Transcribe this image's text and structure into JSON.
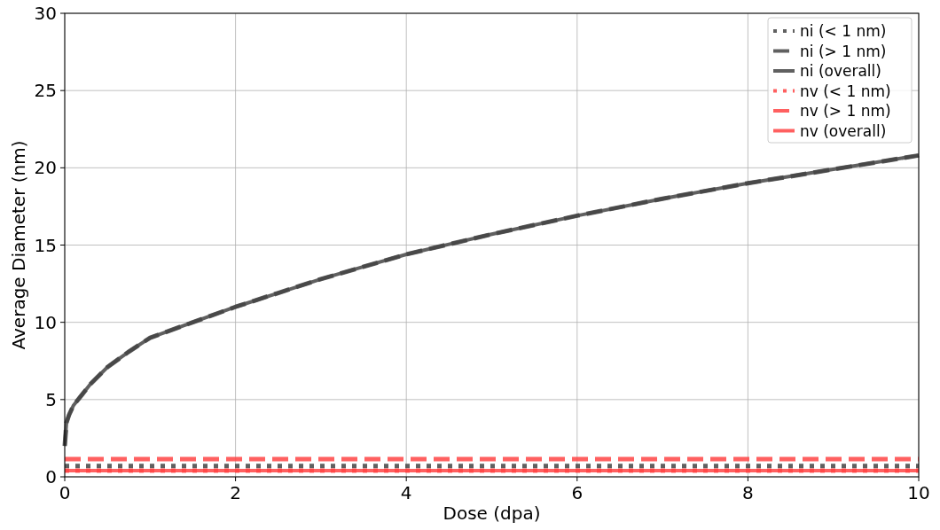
{
  "chart_data": {
    "type": "line",
    "xlabel": "Dose (dpa)",
    "ylabel": "Average Diameter (nm)",
    "xlim": [
      0,
      10
    ],
    "ylim": [
      0,
      30
    ],
    "xticks": [
      0,
      2,
      4,
      6,
      8,
      10
    ],
    "yticks": [
      0,
      5,
      10,
      15,
      20,
      25,
      30
    ],
    "grid": true,
    "legend": "top right",
    "marker": "none",
    "x": [
      0,
      0.02,
      0.05,
      0.1,
      0.2,
      0.3,
      0.5,
      0.75,
      1,
      1.5,
      2,
      2.5,
      3,
      3.5,
      4,
      5,
      6,
      7,
      8,
      9,
      10
    ],
    "series": [
      {
        "name": "ni (< 1 nm)",
        "color": "#444444",
        "line_style": "dotted",
        "values": [
          0.7,
          0.7,
          0.7,
          0.7,
          0.7,
          0.7,
          0.7,
          0.7,
          0.7,
          0.7,
          0.7,
          0.7,
          0.7,
          0.7,
          0.7,
          0.7,
          0.7,
          0.7,
          0.7,
          0.7,
          0.7
        ]
      },
      {
        "name": "ni (> 1 nm)",
        "color": "#444444",
        "line_style": "dashed",
        "values": [
          2.0,
          3.5,
          4.0,
          4.6,
          5.3,
          6.0,
          7.1,
          8.1,
          9.0,
          10.0,
          11.0,
          11.9,
          12.8,
          13.6,
          14.4,
          15.7,
          16.9,
          18.0,
          19.0,
          19.9,
          20.8
        ]
      },
      {
        "name": "ni (overall)",
        "color": "#444444",
        "line_style": "solid",
        "values": [
          2.0,
          3.5,
          4.0,
          4.6,
          5.3,
          6.0,
          7.1,
          8.1,
          9.0,
          10.0,
          11.0,
          11.9,
          12.8,
          13.6,
          14.4,
          15.7,
          16.9,
          18.0,
          19.0,
          19.9,
          20.8
        ]
      },
      {
        "name": "nv (< 1 nm)",
        "color": "#ff4444",
        "line_style": "dotted",
        "values": [
          0.4,
          0.4,
          0.4,
          0.4,
          0.4,
          0.4,
          0.4,
          0.4,
          0.4,
          0.4,
          0.4,
          0.4,
          0.4,
          0.4,
          0.4,
          0.4,
          0.4,
          0.4,
          0.4,
          0.4,
          0.4
        ]
      },
      {
        "name": "nv (> 1 nm)",
        "color": "#ff4444",
        "line_style": "dashed",
        "values": [
          1.15,
          1.15,
          1.15,
          1.15,
          1.15,
          1.15,
          1.15,
          1.15,
          1.15,
          1.15,
          1.15,
          1.15,
          1.15,
          1.15,
          1.15,
          1.15,
          1.15,
          1.15,
          1.15,
          1.15,
          1.15
        ]
      },
      {
        "name": "nv (overall)",
        "color": "#ff4444",
        "line_style": "solid",
        "values": [
          0.4,
          0.4,
          0.4,
          0.4,
          0.4,
          0.4,
          0.4,
          0.4,
          0.4,
          0.4,
          0.4,
          0.4,
          0.4,
          0.4,
          0.4,
          0.4,
          0.4,
          0.4,
          0.4,
          0.4,
          0.4
        ]
      }
    ]
  }
}
